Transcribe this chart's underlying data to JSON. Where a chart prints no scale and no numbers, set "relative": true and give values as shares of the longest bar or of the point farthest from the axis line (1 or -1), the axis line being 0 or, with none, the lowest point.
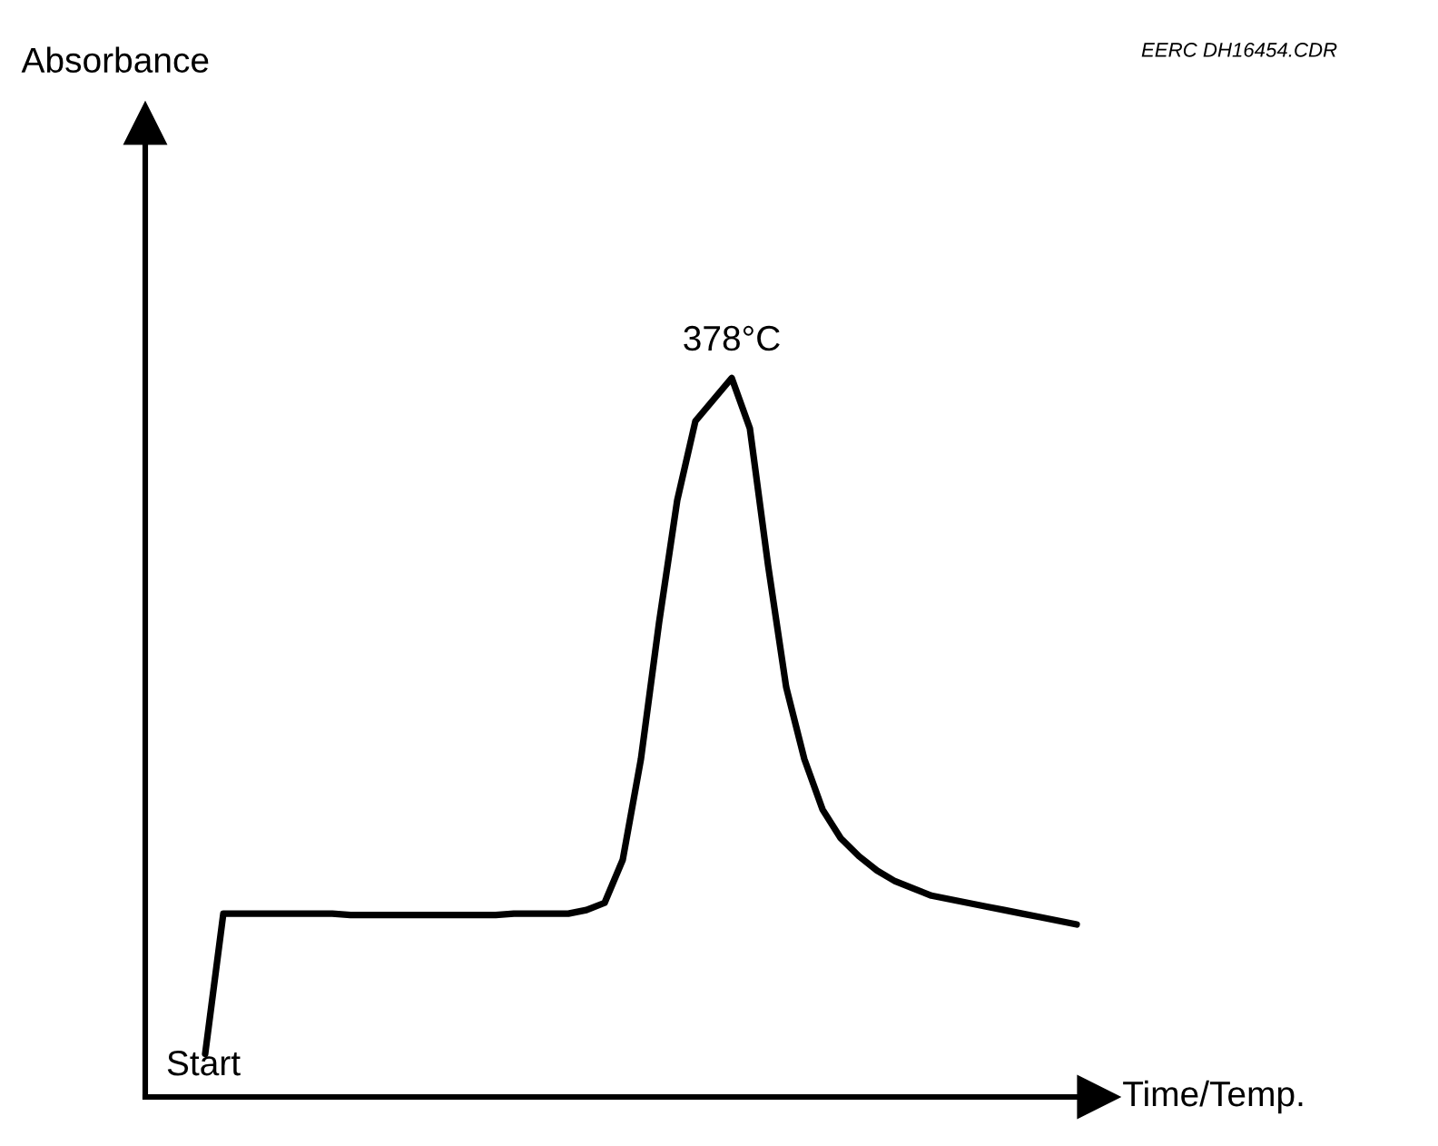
{
  "chart_data": {
    "type": "line",
    "relative": true,
    "xlabel": "Time/Temp.",
    "categories": [
      null,
      null,
      null,
      null,
      null,
      null,
      null,
      null,
      null,
      null,
      null,
      null,
      null,
      null,
      null,
      null,
      null,
      null,
      null,
      null,
      null,
      null,
      null,
      null,
      null,
      null,
      null,
      null,
      null,
      null,
      null,
      null,
      null,
      null,
      null,
      null,
      null,
      null,
      null,
      null,
      null,
      null,
      null,
      null,
      null,
      null,
      null,
      null,
      null
    ],
    "series": [
      {
        "color": "#000000",
        "values": [
          0.06,
          0.255,
          0.255,
          0.255,
          0.255,
          0.255,
          0.255,
          0.255,
          0.253,
          0.253,
          0.253,
          0.253,
          0.253,
          0.253,
          0.253,
          0.253,
          0.253,
          0.255,
          0.255,
          0.255,
          0.255,
          0.26,
          0.27,
          0.33,
          0.47,
          0.66,
          0.83,
          0.94,
          0.97,
          1.0,
          0.93,
          0.74,
          0.57,
          0.47,
          0.4,
          0.36,
          0.335,
          0.315,
          0.3,
          0.29,
          0.28,
          0.275,
          0.27,
          0.265,
          0.26,
          0.255,
          0.25,
          0.245,
          0.24
        ]
      }
    ],
    "annotations": [
      "Absorbance",
      "EERC DH16454.CDR",
      "Start",
      {
        "text": "378°C",
        "y": 1.0
      }
    ],
    "grid": false,
    "legend": false,
    "marker": "none",
    "line_style": "solid"
  }
}
